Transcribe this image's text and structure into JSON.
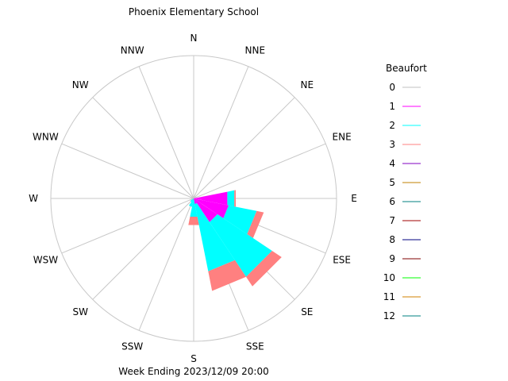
{
  "chart_data": {
    "type": "wind-rose",
    "title": "Phoenix Elementary School",
    "subtitle": "Week Ending 2023/12/09 20:00",
    "directions": [
      "N",
      "NNE",
      "NE",
      "ENE",
      "E",
      "ESE",
      "SE",
      "SSE",
      "S",
      "SSW",
      "SW",
      "WSW",
      "W",
      "WNW",
      "NW",
      "NNW"
    ],
    "grid": true,
    "legend": {
      "title": "Beaufort",
      "placement": "right",
      "entries": [
        {
          "label": "0",
          "color": "#c0c0c0"
        },
        {
          "label": "1",
          "color": "#ff00ff"
        },
        {
          "label": "2",
          "color": "#00ffff"
        },
        {
          "label": "3",
          "color": "#ff8080"
        },
        {
          "label": "4",
          "color": "#8000c0"
        },
        {
          "label": "5",
          "color": "#c08000"
        },
        {
          "label": "6",
          "color": "#008080"
        },
        {
          "label": "7",
          "color": "#a00000"
        },
        {
          "label": "8",
          "color": "#000080"
        },
        {
          "label": "9",
          "color": "#800000"
        },
        {
          "label": "10",
          "color": "#00ff00"
        },
        {
          "label": "11",
          "color": "#d08000"
        },
        {
          "label": "12",
          "color": "#008080"
        }
      ]
    },
    "series": [
      {
        "name": "1",
        "values": [
          0,
          0,
          0,
          0,
          0.24,
          0.25,
          0.2,
          0.04,
          0.01,
          0,
          0,
          0,
          0,
          0,
          0,
          0
        ]
      },
      {
        "name": "2",
        "values": [
          0,
          0,
          0,
          0,
          0.05,
          0.2,
          0.46,
          0.48,
          0.12,
          0.06,
          0.03,
          0,
          0,
          0,
          0,
          0
        ]
      },
      {
        "name": "3",
        "values": [
          0,
          0,
          0,
          0,
          0.01,
          0.05,
          0.08,
          0.14,
          0.06,
          0,
          0,
          0,
          0,
          0,
          0,
          0
        ]
      }
    ]
  }
}
